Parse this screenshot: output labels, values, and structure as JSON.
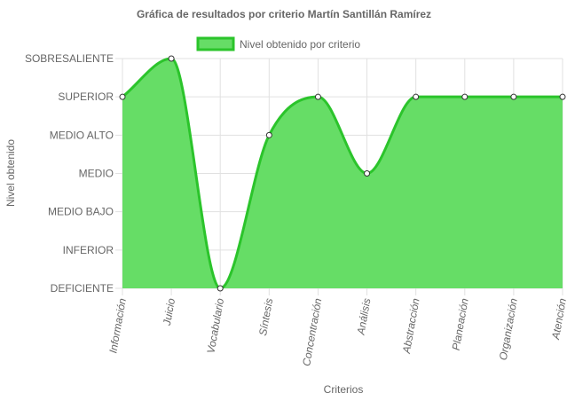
{
  "chart_data": {
    "type": "area",
    "title": "Gráfica de resultados por criterio Martín Santillán Ramírez",
    "xlabel": "Criterios",
    "ylabel": "Nivel obtenido",
    "legend_position": "top",
    "categories": [
      "Información",
      "Juicio",
      "Vocabulario",
      "Síntesis",
      "Concentración",
      "Análisis",
      "Abstracción",
      "Planeación",
      "Organización",
      "Atención"
    ],
    "y_levels": [
      "DEFICIENTE",
      "INFERIOR",
      "MEDIO BAJO",
      "MEDIO",
      "MEDIO ALTO",
      "SUPERIOR",
      "SOBRESALIENTE"
    ],
    "ylim": [
      0,
      6
    ],
    "grid": true,
    "series": [
      {
        "name": "Nivel obtenido por criterio",
        "values": [
          5,
          6,
          0,
          4,
          5,
          3,
          5,
          5,
          5,
          5
        ]
      }
    ],
    "colors": {
      "fill": "#66dd66",
      "line": "#2bc42b",
      "point_fill": "#ffffff",
      "point_stroke": "#333333"
    }
  }
}
